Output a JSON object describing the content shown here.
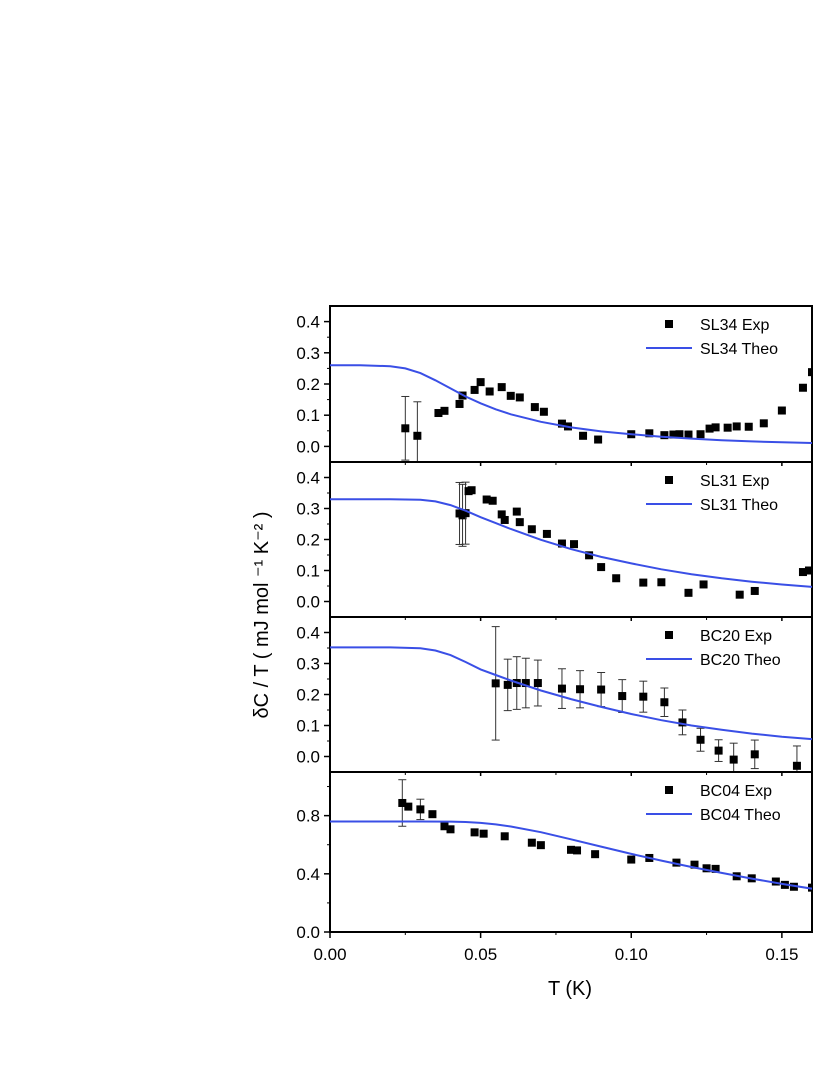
{
  "figure": {
    "ylabel": "δC / T ( mJ mol ⁻¹ K⁻² )",
    "xlabel": "T (K)",
    "xlim": [
      0.0,
      0.16
    ],
    "xticks": [
      "0.00",
      "0.05",
      "0.10",
      "0.15"
    ],
    "xtick_values": [
      0.0,
      0.05,
      0.1,
      0.15
    ]
  },
  "chart_data": [
    {
      "type": "scatter",
      "panel": "SL34",
      "ylim": [
        -0.05,
        0.45
      ],
      "yticks": [
        "0.0",
        "0.1",
        "0.2",
        "0.3",
        "0.4"
      ],
      "ytick_values": [
        0.0,
        0.1,
        0.2,
        0.3,
        0.4
      ],
      "legend_position": "top-right",
      "series": [
        {
          "name": "SL34 Exp",
          "kind": "points",
          "color": "#000000",
          "x": [
            0.025,
            0.029,
            0.036,
            0.038,
            0.043,
            0.044,
            0.048,
            0.05,
            0.053,
            0.057,
            0.06,
            0.063,
            0.068,
            0.071,
            0.077,
            0.079,
            0.084,
            0.089,
            0.1,
            0.106,
            0.111,
            0.114,
            0.116,
            0.119,
            0.123,
            0.126,
            0.128,
            0.132,
            0.135,
            0.139,
            0.144,
            0.15,
            0.157,
            0.16
          ],
          "y": [
            0.058,
            0.034,
            0.107,
            0.114,
            0.136,
            0.163,
            0.181,
            0.206,
            0.176,
            0.19,
            0.162,
            0.157,
            0.126,
            0.111,
            0.073,
            0.064,
            0.034,
            0.022,
            0.039,
            0.042,
            0.036,
            0.038,
            0.039,
            0.038,
            0.039,
            0.057,
            0.061,
            0.06,
            0.064,
            0.063,
            0.074,
            0.115,
            0.188,
            0.238
          ],
          "yerr": [
            0.102,
            0.109,
            0,
            0,
            0,
            0,
            0,
            0,
            0,
            0,
            0,
            0,
            0,
            0,
            0,
            0,
            0,
            0,
            0,
            0,
            0,
            0,
            0,
            0,
            0,
            0,
            0,
            0,
            0,
            0,
            0,
            0,
            0,
            0
          ]
        },
        {
          "name": "SL34 Theo",
          "kind": "line",
          "color": "#3a4fe6",
          "x": [
            0.0,
            0.01,
            0.02,
            0.025,
            0.03,
            0.035,
            0.04,
            0.045,
            0.05,
            0.055,
            0.06,
            0.07,
            0.08,
            0.09,
            0.1,
            0.11,
            0.12,
            0.13,
            0.14,
            0.15,
            0.16
          ],
          "y": [
            0.26,
            0.26,
            0.257,
            0.25,
            0.235,
            0.212,
            0.186,
            0.16,
            0.138,
            0.119,
            0.103,
            0.079,
            0.061,
            0.048,
            0.039,
            0.031,
            0.025,
            0.02,
            0.016,
            0.013,
            0.011
          ]
        }
      ]
    },
    {
      "type": "scatter",
      "panel": "SL31",
      "ylim": [
        -0.05,
        0.45
      ],
      "yticks": [
        "0.0",
        "0.1",
        "0.2",
        "0.3",
        "0.4"
      ],
      "ytick_values": [
        0.0,
        0.1,
        0.2,
        0.3,
        0.4
      ],
      "legend_position": "top-right",
      "series": [
        {
          "name": "SL31 Exp",
          "kind": "points",
          "color": "#000000",
          "x": [
            0.043,
            0.044,
            0.045,
            0.046,
            0.047,
            0.052,
            0.054,
            0.057,
            0.058,
            0.062,
            0.063,
            0.067,
            0.072,
            0.077,
            0.081,
            0.086,
            0.09,
            0.095,
            0.104,
            0.11,
            0.119,
            0.124,
            0.136,
            0.141,
            0.157,
            0.159
          ],
          "y": [
            0.284,
            0.278,
            0.285,
            0.356,
            0.359,
            0.329,
            0.325,
            0.281,
            0.263,
            0.29,
            0.256,
            0.233,
            0.218,
            0.187,
            0.185,
            0.149,
            0.111,
            0.075,
            0.061,
            0.062,
            0.028,
            0.055,
            0.022,
            0.034,
            0.095,
            0.1
          ],
          "yerr": [
            0.1,
            0.1,
            0.1,
            0,
            0,
            0,
            0,
            0,
            0,
            0,
            0,
            0,
            0,
            0,
            0,
            0,
            0,
            0,
            0,
            0,
            0,
            0,
            0,
            0,
            0,
            0
          ]
        },
        {
          "name": "SL31 Theo",
          "kind": "line",
          "color": "#3a4fe6",
          "x": [
            0.0,
            0.01,
            0.02,
            0.03,
            0.035,
            0.04,
            0.045,
            0.05,
            0.055,
            0.06,
            0.07,
            0.08,
            0.09,
            0.1,
            0.11,
            0.12,
            0.13,
            0.14,
            0.15,
            0.16
          ],
          "y": [
            0.33,
            0.33,
            0.33,
            0.328,
            0.323,
            0.311,
            0.293,
            0.272,
            0.253,
            0.234,
            0.199,
            0.169,
            0.144,
            0.123,
            0.104,
            0.088,
            0.075,
            0.064,
            0.055,
            0.047
          ]
        }
      ]
    },
    {
      "type": "scatter",
      "panel": "BC20",
      "ylim": [
        -0.05,
        0.45
      ],
      "yticks": [
        "0.0",
        "0.1",
        "0.2",
        "0.3",
        "0.4"
      ],
      "ytick_values": [
        0.0,
        0.1,
        0.2,
        0.3,
        0.4
      ],
      "legend_position": "top-right",
      "series": [
        {
          "name": "BC20 Exp",
          "kind": "points",
          "color": "#000000",
          "x": [
            0.055,
            0.059,
            0.062,
            0.065,
            0.069,
            0.077,
            0.083,
            0.09,
            0.097,
            0.104,
            0.111,
            0.117,
            0.123,
            0.129,
            0.134,
            0.141,
            0.155
          ],
          "y": [
            0.236,
            0.231,
            0.237,
            0.237,
            0.237,
            0.219,
            0.217,
            0.216,
            0.195,
            0.193,
            0.175,
            0.11,
            0.054,
            0.019,
            -0.01,
            0.007,
            -0.03
          ],
          "yerr": [
            0.183,
            0.083,
            0.085,
            0.08,
            0.074,
            0.064,
            0.06,
            0.055,
            0.053,
            0.05,
            0.046,
            0.04,
            0.037,
            0.035,
            0.053,
            0.046,
            0.064
          ]
        },
        {
          "name": "BC20 Theo",
          "kind": "line",
          "color": "#3a4fe6",
          "x": [
            0.0,
            0.01,
            0.02,
            0.03,
            0.035,
            0.04,
            0.045,
            0.05,
            0.055,
            0.06,
            0.07,
            0.08,
            0.09,
            0.1,
            0.11,
            0.12,
            0.13,
            0.14,
            0.15,
            0.16
          ],
          "y": [
            0.352,
            0.352,
            0.352,
            0.349,
            0.342,
            0.327,
            0.305,
            0.281,
            0.263,
            0.245,
            0.213,
            0.185,
            0.16,
            0.137,
            0.117,
            0.1,
            0.086,
            0.074,
            0.064,
            0.056
          ]
        }
      ]
    },
    {
      "type": "scatter",
      "panel": "BC04",
      "ylim": [
        0.0,
        1.1
      ],
      "yticks": [
        "0.0",
        "0.4",
        "0.8"
      ],
      "ytick_values": [
        0.0,
        0.4,
        0.8
      ],
      "legend_position": "top-right",
      "series": [
        {
          "name": "BC04 Exp",
          "kind": "points",
          "color": "#000000",
          "x": [
            0.024,
            0.026,
            0.03,
            0.034,
            0.038,
            0.04,
            0.048,
            0.051,
            0.058,
            0.067,
            0.07,
            0.08,
            0.082,
            0.088,
            0.1,
            0.106,
            0.115,
            0.121,
            0.125,
            0.128,
            0.135,
            0.14,
            0.148,
            0.151,
            0.154,
            0.16
          ],
          "y": [
            0.887,
            0.862,
            0.843,
            0.81,
            0.727,
            0.706,
            0.685,
            0.676,
            0.658,
            0.614,
            0.597,
            0.565,
            0.561,
            0.535,
            0.498,
            0.509,
            0.477,
            0.463,
            0.438,
            0.434,
            0.383,
            0.369,
            0.347,
            0.324,
            0.311,
            0.305
          ],
          "yerr": [
            0.16,
            0,
            0.07,
            0,
            0,
            0,
            0,
            0,
            0,
            0,
            0,
            0,
            0,
            0,
            0,
            0,
            0,
            0,
            0,
            0,
            0,
            0,
            0,
            0,
            0,
            0
          ]
        },
        {
          "name": "BC04 Theo",
          "kind": "line",
          "color": "#3a4fe6",
          "x": [
            0.0,
            0.01,
            0.02,
            0.03,
            0.04,
            0.045,
            0.05,
            0.055,
            0.06,
            0.07,
            0.08,
            0.09,
            0.1,
            0.11,
            0.12,
            0.13,
            0.14,
            0.15,
            0.16
          ],
          "y": [
            0.76,
            0.76,
            0.76,
            0.76,
            0.759,
            0.756,
            0.75,
            0.74,
            0.725,
            0.686,
            0.637,
            0.587,
            0.537,
            0.491,
            0.447,
            0.406,
            0.367,
            0.331,
            0.298
          ]
        }
      ]
    }
  ]
}
